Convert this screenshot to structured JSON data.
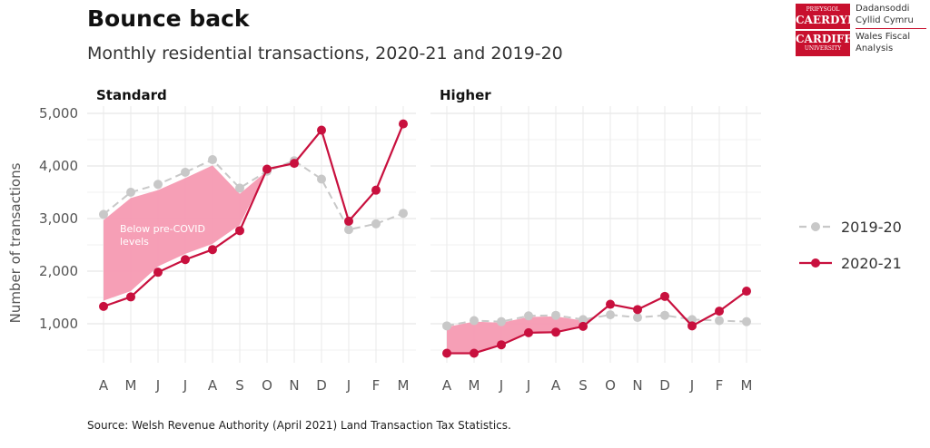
{
  "header": {
    "title": "Bounce back",
    "subtitle": "Monthly residential transactions, 2020-21 and 2019-20"
  },
  "source": "Source: Welsh Revenue Authority (April 2021) Land Transaction Tax Statistics.",
  "logo": {
    "line1_small": "PRIFYSGOL",
    "line1_big": "CAERDYDD",
    "line2_big": "CARDIFF",
    "line2_small": "UNIVERSITY",
    "text1": "Dadansoddi",
    "text2": "Cyllid Cymru",
    "text3": "Wales Fiscal",
    "text4": "Analysis"
  },
  "colors": {
    "series_2019": "#c8c8c8",
    "series_2020": "#c8103e",
    "ribbon": "#f59ab2"
  },
  "chart_data": {
    "type": "line",
    "ylabel": "Number of transactions",
    "ylim": [
      500,
      5000
    ],
    "yticks": [
      1000,
      2000,
      3000,
      4000,
      5000
    ],
    "ytick_labels": [
      "1,000",
      "2,000",
      "3,000",
      "4,000",
      "5,000"
    ],
    "categories": [
      "A",
      "M",
      "J",
      "J",
      "A",
      "S",
      "O",
      "N",
      "D",
      "J",
      "F",
      "M"
    ],
    "legend": {
      "position": "right",
      "entries": [
        "2019-20",
        "2020-21"
      ]
    },
    "annotation": [
      "Below pre-COVID",
      "levels"
    ],
    "panels": [
      {
        "title": "Standard",
        "series": [
          {
            "name": "2019-20",
            "values": [
              3080,
              3500,
              3650,
              3880,
              4120,
              3580,
              3900,
              4100,
              3750,
              2790,
              2900,
              3100
            ]
          },
          {
            "name": "2020-21",
            "values": [
              1330,
              1510,
              1980,
              2220,
              2410,
              2770,
              3940,
              4050,
              4680,
              2950,
              3540,
              4800
            ]
          }
        ]
      },
      {
        "title": "Higher",
        "series": [
          {
            "name": "2019-20",
            "values": [
              960,
              1060,
              1040,
              1150,
              1160,
              1080,
              1170,
              1120,
              1160,
              1080,
              1060,
              1040
            ]
          },
          {
            "name": "2020-21",
            "values": [
              440,
              440,
              600,
              830,
              840,
              950,
              1370,
              1270,
              1520,
              960,
              1240,
              1620
            ]
          }
        ]
      }
    ]
  }
}
